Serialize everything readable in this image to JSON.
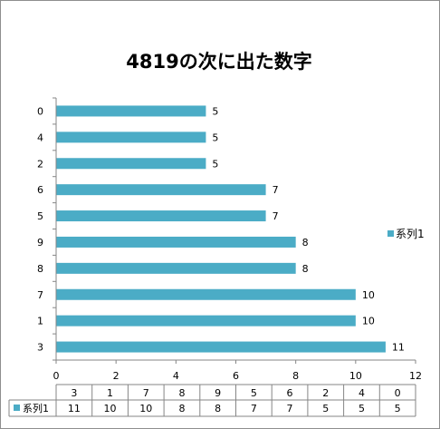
{
  "chart_data": {
    "type": "bar",
    "orientation": "horizontal",
    "title": "4819の次に出た数字",
    "categories": [
      "3",
      "1",
      "7",
      "8",
      "9",
      "5",
      "6",
      "2",
      "4",
      "0"
    ],
    "series": [
      {
        "name": "系列1",
        "values": [
          11,
          10,
          10,
          8,
          8,
          7,
          7,
          5,
          5,
          5
        ],
        "color": "#4bacc6"
      }
    ],
    "xlim": [
      0,
      12
    ],
    "x_ticks": [
      0,
      2,
      4,
      6,
      8,
      10,
      12
    ],
    "grid": false,
    "data_labels": true,
    "legend_position": "right",
    "data_table": true
  }
}
